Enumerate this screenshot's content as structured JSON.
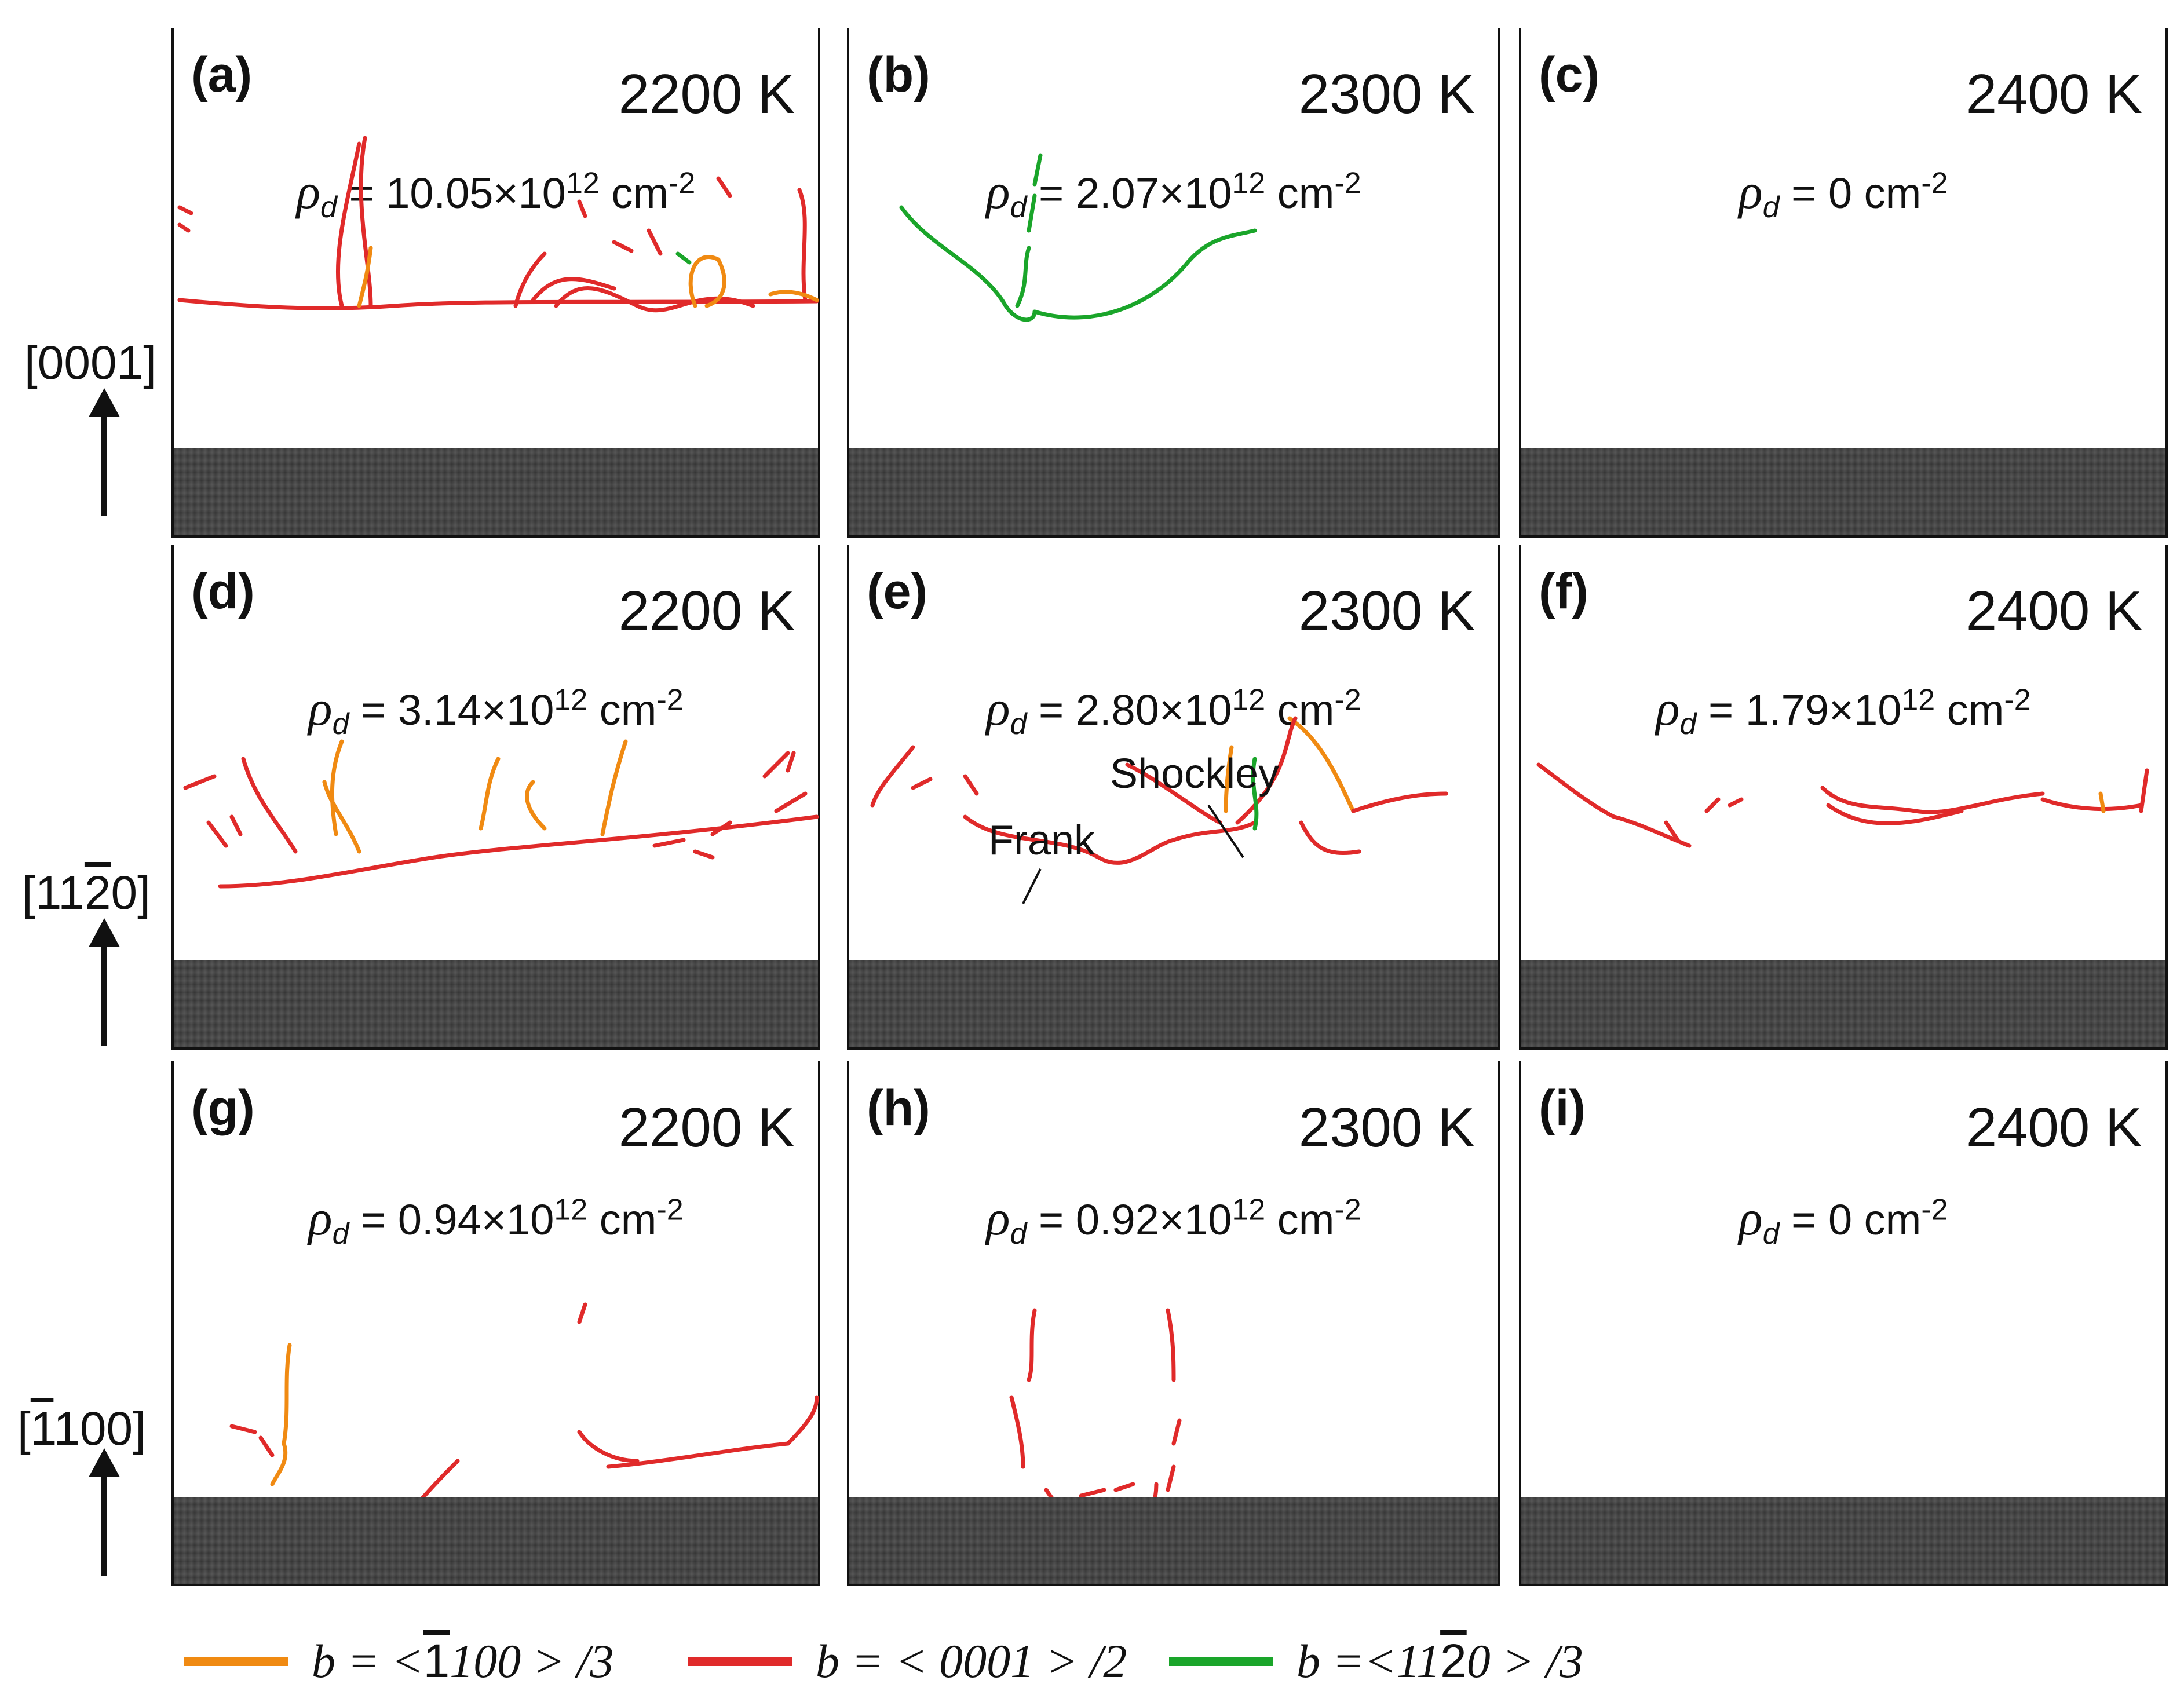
{
  "colors": {
    "orange": "#f08a12",
    "red": "#e02a2a",
    "green": "#1aa52a",
    "slab": "#444444"
  },
  "panels": [
    {
      "label": "(a)",
      "temp": "2200 K",
      "density_value": "10.05×10",
      "density_exp": "12",
      "density_unit": "cm",
      "density_unit_exp": "-2"
    },
    {
      "label": "(b)",
      "temp": "2300 K",
      "density_value": "2.07×10",
      "density_exp": "12",
      "density_unit": "cm",
      "density_unit_exp": "-2"
    },
    {
      "label": "(c)",
      "temp": "2400 K",
      "density_value": "0",
      "density_exp": "",
      "density_unit": "cm",
      "density_unit_exp": "-2"
    },
    {
      "label": "(d)",
      "temp": "2200 K",
      "density_value": "3.14×10",
      "density_exp": "12",
      "density_unit": "cm",
      "density_unit_exp": "-2"
    },
    {
      "label": "(e)",
      "temp": "2300 K",
      "density_value": "2.80×10",
      "density_exp": "12",
      "density_unit": "cm",
      "density_unit_exp": "-2"
    },
    {
      "label": "(f)",
      "temp": "2400 K",
      "density_value": "1.79×10",
      "density_exp": "12",
      "density_unit": "cm",
      "density_unit_exp": "-2"
    },
    {
      "label": "(g)",
      "temp": "2200 K",
      "density_value": "0.94×10",
      "density_exp": "12",
      "density_unit": "cm",
      "density_unit_exp": "-2"
    },
    {
      "label": "(h)",
      "temp": "2300 K",
      "density_value": "0.92×10",
      "density_exp": "12",
      "density_unit": "cm",
      "density_unit_exp": "-2"
    },
    {
      "label": "(i)",
      "temp": "2400 K",
      "density_value": "0",
      "density_exp": "",
      "density_unit": "cm",
      "density_unit_exp": "-2"
    }
  ],
  "density_symbol": "ρ",
  "density_subscript": "d",
  "equals": "=",
  "row_directions": [
    {
      "pre": "[000",
      "post": "1]",
      "overlined": ""
    },
    {
      "pre": "[11",
      "post": "0]",
      "overlined": "2"
    },
    {
      "pre": "[",
      "post": "100]",
      "overlined": "1"
    }
  ],
  "annotations": {
    "shockley": "Shockley",
    "frank": "Frank"
  },
  "legend": [
    {
      "color": "#f08a12",
      "prefix": "b = <",
      "overlined": "1",
      "suffix": "100 > /3"
    },
    {
      "color": "#e02a2a",
      "prefix": "b = < 0001 > /2",
      "overlined": "",
      "suffix": ""
    },
    {
      "color": "#1aa52a",
      "prefix": "b =<11",
      "overlined": "2",
      "suffix": "0 > /3"
    }
  ]
}
